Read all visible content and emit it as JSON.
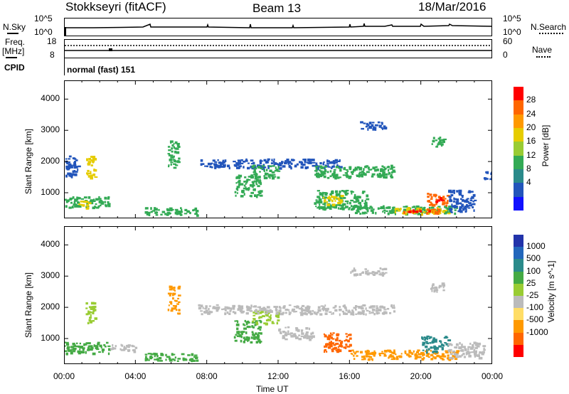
{
  "header": {
    "station": "Stokkseyri (fitACF)",
    "beam": "Beam 13",
    "date": "18/Mar/2016"
  },
  "noise_panel": {
    "left_label": "N.Sky",
    "right_label": "N.Search",
    "left_ticks": [
      "10^5",
      "10^0"
    ],
    "right_ticks": [
      "10^5",
      "10^0"
    ]
  },
  "freq_panel": {
    "left_label_line1": "Freq.",
    "left_label_line2": "[MHz]",
    "right_label": "Nave",
    "left_ticks": [
      "18",
      "8"
    ],
    "right_ticks": [
      "60",
      "0"
    ]
  },
  "cpid_panel": {
    "label": "CPID",
    "text": "normal (fast) 151"
  },
  "chart_data": [
    {
      "type": "heatmap",
      "name": "power",
      "ylabel": "Slant Range [km]",
      "ylim": [
        180,
        4600
      ],
      "yticks": [
        1000,
        2000,
        3000,
        4000
      ],
      "colorbar": {
        "label": "Power [dB]",
        "ticks": [
          "28",
          "24",
          "20",
          "16",
          "12",
          "8",
          "4"
        ],
        "colors": [
          "#ff0000",
          "#ff6600",
          "#ff9900",
          "#e6cc00",
          "#99cc33",
          "#33aa55",
          "#2a8a8a",
          "#2255bb",
          "#1111ff"
        ]
      },
      "colors": {
        "low": "#2255bb",
        "mid": "#33aa55",
        "high": "#e6cc00",
        "strong": "#ff6600",
        "peak": "#ff0000"
      },
      "regions": [
        {
          "t0": 0.0,
          "t1": 0.8,
          "r0": 1500,
          "r1": 2200,
          "level": "low"
        },
        {
          "t0": 0.0,
          "t1": 2.5,
          "r0": 550,
          "r1": 900,
          "level": "mid"
        },
        {
          "t0": 0.8,
          "t1": 1.4,
          "r0": 500,
          "r1": 750,
          "level": "high"
        },
        {
          "t0": 1.2,
          "t1": 1.7,
          "r0": 1500,
          "r1": 2200,
          "level": "high"
        },
        {
          "t0": 5.8,
          "t1": 6.4,
          "r0": 1800,
          "r1": 2700,
          "level": "mid"
        },
        {
          "t0": 4.5,
          "t1": 7.5,
          "r0": 300,
          "r1": 550,
          "level": "mid"
        },
        {
          "t0": 9.5,
          "t1": 11.0,
          "r0": 900,
          "r1": 1600,
          "level": "mid"
        },
        {
          "t0": 7.5,
          "t1": 15.5,
          "r0": 1800,
          "r1": 2100,
          "level": "low"
        },
        {
          "t0": 10.5,
          "t1": 12.0,
          "r0": 1500,
          "r1": 1900,
          "level": "mid"
        },
        {
          "t0": 14.0,
          "t1": 18.5,
          "r0": 1500,
          "r1": 1900,
          "level": "mid"
        },
        {
          "t0": 14.0,
          "t1": 17.0,
          "r0": 500,
          "r1": 1100,
          "level": "mid"
        },
        {
          "t0": 14.5,
          "t1": 15.5,
          "r0": 650,
          "r1": 950,
          "level": "high"
        },
        {
          "t0": 16.0,
          "t1": 22.0,
          "r0": 350,
          "r1": 600,
          "level": "mid"
        },
        {
          "t0": 18.5,
          "t1": 21.5,
          "r0": 350,
          "r1": 550,
          "level": "high"
        },
        {
          "t0": 19.0,
          "t1": 21.0,
          "r0": 350,
          "r1": 500,
          "level": "strong"
        },
        {
          "t0": 19.3,
          "t1": 20.5,
          "r0": 380,
          "r1": 470,
          "level": "peak"
        },
        {
          "t0": 20.3,
          "t1": 21.5,
          "r0": 600,
          "r1": 1000,
          "level": "strong"
        },
        {
          "t0": 20.7,
          "t1": 21.2,
          "r0": 700,
          "r1": 900,
          "level": "peak"
        },
        {
          "t0": 21.5,
          "t1": 23.0,
          "r0": 400,
          "r1": 1100,
          "level": "low"
        },
        {
          "t0": 16.5,
          "t1": 18.0,
          "r0": 3050,
          "r1": 3300,
          "level": "low"
        },
        {
          "t0": 20.5,
          "t1": 21.3,
          "r0": 2500,
          "r1": 2800,
          "level": "mid"
        },
        {
          "t0": 23.5,
          "t1": 24.0,
          "r0": 1400,
          "r1": 1700,
          "level": "low"
        }
      ]
    },
    {
      "type": "heatmap",
      "name": "velocity",
      "xlabel": "Time UT",
      "ylabel": "Slant Range [km]",
      "xlim": [
        0,
        24
      ],
      "xticks": [
        "00:00",
        "04:00",
        "08:00",
        "12:00",
        "16:00",
        "20:00",
        "00:00"
      ],
      "ylim": [
        180,
        4600
      ],
      "yticks": [
        1000,
        2000,
        3000,
        4000
      ],
      "colorbar": {
        "label": "Velocity [m s^-1]",
        "ticks": [
          "1000",
          "500",
          "100",
          "25",
          "-25",
          "-100",
          "-500",
          "-1000"
        ],
        "colors": [
          "#2233aa",
          "#2266bb",
          "#2a8a8a",
          "#44aa44",
          "#99cc33",
          "#bbbbbb",
          "#ffdd66",
          "#ff9900",
          "#ff6600",
          "#ff0000"
        ]
      },
      "colors": {
        "ground": "#bbbbbb",
        "pos_low": "#99cc33",
        "pos_mid": "#44aa44",
        "pos_high": "#2a8a8a",
        "neg_low": "#ffcc33",
        "neg_mid": "#ff9900",
        "neg_high": "#ff6600"
      },
      "regions": [
        {
          "t0": 0.0,
          "t1": 2.5,
          "r0": 550,
          "r1": 900,
          "level": "pos_mid"
        },
        {
          "t0": 1.2,
          "t1": 1.7,
          "r0": 1500,
          "r1": 2200,
          "level": "pos_low"
        },
        {
          "t0": 2.5,
          "t1": 4.0,
          "r0": 600,
          "r1": 850,
          "level": "ground"
        },
        {
          "t0": 5.8,
          "t1": 6.4,
          "r0": 1800,
          "r1": 2700,
          "level": "neg_mid"
        },
        {
          "t0": 4.5,
          "t1": 7.5,
          "r0": 300,
          "r1": 550,
          "level": "pos_mid"
        },
        {
          "t0": 9.5,
          "t1": 11.0,
          "r0": 900,
          "r1": 1600,
          "level": "pos_mid"
        },
        {
          "t0": 10.5,
          "t1": 12.0,
          "r0": 1500,
          "r1": 1900,
          "level": "pos_low"
        },
        {
          "t0": 7.5,
          "t1": 18.5,
          "r0": 1800,
          "r1": 2100,
          "level": "ground"
        },
        {
          "t0": 14.5,
          "t1": 16.0,
          "r0": 600,
          "r1": 1200,
          "level": "neg_high"
        },
        {
          "t0": 16.0,
          "t1": 22.0,
          "r0": 350,
          "r1": 650,
          "level": "neg_mid"
        },
        {
          "t0": 20.0,
          "t1": 21.5,
          "r0": 600,
          "r1": 1100,
          "level": "pos_high"
        },
        {
          "t0": 21.5,
          "t1": 23.5,
          "r0": 400,
          "r1": 900,
          "level": "ground"
        },
        {
          "t0": 16.0,
          "t1": 18.0,
          "r0": 3050,
          "r1": 3300,
          "level": "ground"
        },
        {
          "t0": 20.5,
          "t1": 21.3,
          "r0": 2500,
          "r1": 2800,
          "level": "ground"
        },
        {
          "t0": 12.0,
          "t1": 14.0,
          "r0": 1000,
          "r1": 1400,
          "level": "ground"
        }
      ]
    }
  ]
}
